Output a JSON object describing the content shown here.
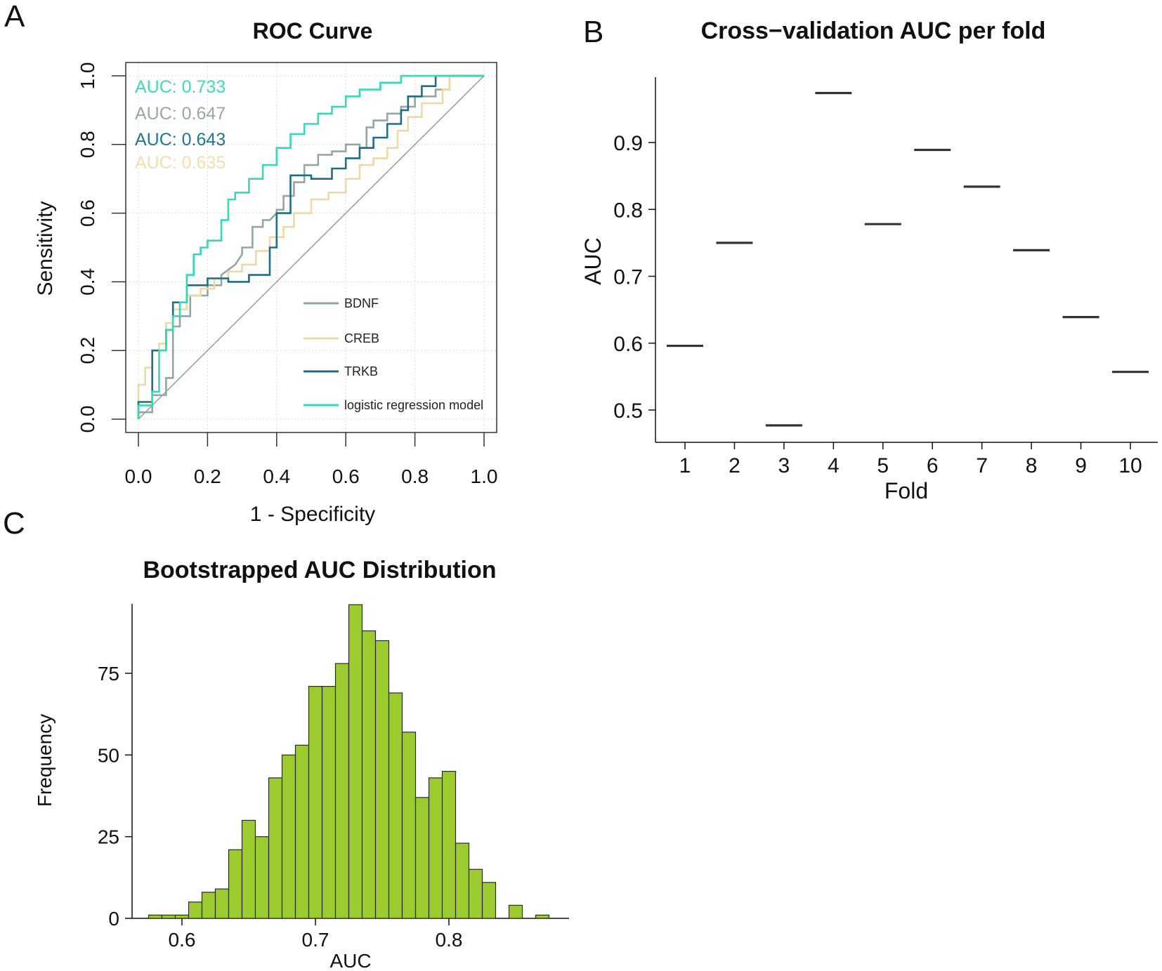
{
  "panels": {
    "a": {
      "letter": "A"
    },
    "b": {
      "letter": "B"
    },
    "c": {
      "letter": "C"
    }
  },
  "chart_data": [
    {
      "id": "roc",
      "type": "line",
      "title": "ROC Curve",
      "xlabel": "1 - Specificity",
      "ylabel": "Sensitivity",
      "xlim": [
        0,
        1
      ],
      "ylim": [
        0,
        1
      ],
      "xticks": [
        "0.0",
        "0.2",
        "0.4",
        "0.6",
        "0.8",
        "1.0"
      ],
      "yticks": [
        "0.0",
        "0.2",
        "0.4",
        "0.6",
        "0.8",
        "1.0"
      ],
      "grid": true,
      "diagonal_reference": true,
      "legend_position": "bottom-right",
      "auc_labels": [
        {
          "text": "AUC: 0.733",
          "color": "#3ddcb9"
        },
        {
          "text": "AUC: 0.647",
          "color": "#9aa7a5"
        },
        {
          "text": "AUC: 0.643",
          "color": "#1f7890"
        },
        {
          "text": "AUC: 0.635",
          "color": "#f1dfb0"
        }
      ],
      "series": [
        {
          "name": "BDNF",
          "color": "#94a6a1",
          "x": [
            0,
            0,
            0.04,
            0.04,
            0.08,
            0.08,
            0.1,
            0.1,
            0.12,
            0.12,
            0.15,
            0.15,
            0.2,
            0.2,
            0.24,
            0.24,
            0.28,
            0.3,
            0.3,
            0.33,
            0.33,
            0.36,
            0.36,
            0.38,
            0.4,
            0.4,
            0.42,
            0.42,
            0.45,
            0.45,
            0.48,
            0.48,
            0.52,
            0.52,
            0.56,
            0.56,
            0.6,
            0.6,
            0.64,
            0.64,
            0.66,
            0.66,
            0.68,
            0.68,
            0.72,
            0.72,
            0.76,
            0.76,
            0.8,
            0.8,
            0.86,
            0.86,
            0.9,
            0.9,
            1
          ],
          "y": [
            0,
            0.02,
            0.02,
            0.07,
            0.07,
            0.12,
            0.12,
            0.27,
            0.27,
            0.3,
            0.3,
            0.36,
            0.36,
            0.39,
            0.39,
            0.42,
            0.45,
            0.48,
            0.5,
            0.5,
            0.56,
            0.56,
            0.58,
            0.58,
            0.6,
            0.61,
            0.61,
            0.65,
            0.65,
            0.69,
            0.69,
            0.74,
            0.74,
            0.77,
            0.77,
            0.78,
            0.78,
            0.8,
            0.8,
            0.79,
            0.79,
            0.85,
            0.85,
            0.87,
            0.87,
            0.89,
            0.89,
            0.91,
            0.91,
            0.94,
            0.94,
            0.96,
            0.96,
            1,
            1
          ]
        },
        {
          "name": "CREB",
          "color": "#eed9a6",
          "x": [
            0,
            0,
            0.02,
            0.02,
            0.04,
            0.04,
            0.06,
            0.06,
            0.08,
            0.08,
            0.1,
            0.1,
            0.14,
            0.14,
            0.18,
            0.18,
            0.22,
            0.22,
            0.26,
            0.26,
            0.3,
            0.3,
            0.34,
            0.34,
            0.38,
            0.38,
            0.42,
            0.42,
            0.45,
            0.45,
            0.5,
            0.5,
            0.55,
            0.55,
            0.6,
            0.6,
            0.64,
            0.64,
            0.68,
            0.68,
            0.72,
            0.72,
            0.75,
            0.75,
            0.78,
            0.78,
            0.82,
            0.82,
            0.88,
            0.88,
            0.9,
            0.9,
            1
          ],
          "y": [
            0,
            0.1,
            0.1,
            0.15,
            0.15,
            0.2,
            0.2,
            0.22,
            0.22,
            0.28,
            0.28,
            0.32,
            0.32,
            0.36,
            0.36,
            0.38,
            0.38,
            0.41,
            0.41,
            0.43,
            0.43,
            0.45,
            0.45,
            0.49,
            0.49,
            0.53,
            0.53,
            0.56,
            0.56,
            0.6,
            0.6,
            0.64,
            0.64,
            0.66,
            0.66,
            0.7,
            0.7,
            0.74,
            0.74,
            0.76,
            0.76,
            0.79,
            0.79,
            0.84,
            0.84,
            0.88,
            0.88,
            0.92,
            0.92,
            0.96,
            0.96,
            1,
            1
          ]
        },
        {
          "name": "TRKB",
          "color": "#1c6f86",
          "x": [
            0,
            0,
            0.04,
            0.04,
            0.08,
            0.08,
            0.1,
            0.1,
            0.14,
            0.14,
            0.2,
            0.2,
            0.26,
            0.26,
            0.32,
            0.32,
            0.38,
            0.38,
            0.4,
            0.4,
            0.44,
            0.44,
            0.5,
            0.5,
            0.56,
            0.56,
            0.6,
            0.6,
            0.64,
            0.64,
            0.68,
            0.68,
            0.72,
            0.72,
            0.76,
            0.76,
            0.78,
            0.78,
            0.82,
            0.82,
            0.86,
            0.86,
            1
          ],
          "y": [
            0,
            0.05,
            0.05,
            0.2,
            0.2,
            0.26,
            0.26,
            0.34,
            0.34,
            0.39,
            0.39,
            0.41,
            0.41,
            0.4,
            0.4,
            0.42,
            0.42,
            0.5,
            0.5,
            0.6,
            0.6,
            0.71,
            0.71,
            0.7,
            0.7,
            0.73,
            0.73,
            0.76,
            0.76,
            0.79,
            0.79,
            0.82,
            0.82,
            0.86,
            0.86,
            0.9,
            0.9,
            0.94,
            0.94,
            0.97,
            0.97,
            1,
            1
          ]
        },
        {
          "name": "logistic regression model",
          "color": "#34dab6",
          "x": [
            0,
            0,
            0.04,
            0.04,
            0.06,
            0.06,
            0.08,
            0.08,
            0.1,
            0.1,
            0.12,
            0.12,
            0.14,
            0.14,
            0.16,
            0.16,
            0.18,
            0.18,
            0.2,
            0.2,
            0.24,
            0.24,
            0.26,
            0.26,
            0.28,
            0.28,
            0.32,
            0.32,
            0.36,
            0.36,
            0.4,
            0.4,
            0.44,
            0.44,
            0.48,
            0.48,
            0.52,
            0.52,
            0.56,
            0.56,
            0.6,
            0.6,
            0.64,
            0.64,
            0.7,
            0.7,
            0.76,
            0.76,
            0.84,
            0.84,
            1
          ],
          "y": [
            0,
            0.04,
            0.04,
            0.08,
            0.08,
            0.2,
            0.2,
            0.26,
            0.26,
            0.3,
            0.3,
            0.34,
            0.34,
            0.42,
            0.42,
            0.48,
            0.48,
            0.5,
            0.5,
            0.52,
            0.52,
            0.58,
            0.58,
            0.64,
            0.64,
            0.66,
            0.66,
            0.7,
            0.7,
            0.74,
            0.74,
            0.79,
            0.79,
            0.83,
            0.83,
            0.86,
            0.86,
            0.89,
            0.89,
            0.91,
            0.91,
            0.94,
            0.94,
            0.96,
            0.96,
            0.98,
            0.98,
            1,
            1,
            1,
            1
          ]
        }
      ]
    },
    {
      "id": "cv",
      "type": "scatter",
      "title": "Cross−validation AUC per fold",
      "xlabel": "Fold",
      "ylabel": "AUC",
      "categories": [
        "1",
        "2",
        "3",
        "4",
        "5",
        "6",
        "7",
        "8",
        "9",
        "10"
      ],
      "values": [
        0.596,
        0.75,
        0.477,
        0.974,
        0.778,
        0.889,
        0.834,
        0.739,
        0.639,
        0.557
      ],
      "yticks": [
        "0.5",
        "0.6",
        "0.7",
        "0.8",
        "0.9"
      ],
      "ylim": [
        0.455,
        1.0
      ],
      "marker": "horizontal-dash",
      "grid": false
    },
    {
      "id": "boot",
      "type": "bar",
      "title": "Bootstrapped AUC Distribution",
      "xlabel": "AUC",
      "ylabel": "Frequency",
      "bin_width": 0.01,
      "bin_starts": [
        0.575,
        0.585,
        0.595,
        0.605,
        0.615,
        0.625,
        0.635,
        0.645,
        0.655,
        0.665,
        0.675,
        0.685,
        0.695,
        0.705,
        0.715,
        0.725,
        0.735,
        0.745,
        0.755,
        0.765,
        0.775,
        0.785,
        0.795,
        0.805,
        0.815,
        0.825,
        0.835,
        0.845,
        0.855,
        0.865,
        0.875
      ],
      "values": [
        1,
        1,
        1,
        5,
        8,
        9,
        21,
        30,
        25,
        43,
        50,
        53,
        71,
        71,
        78,
        96,
        88,
        85,
        69,
        57,
        37,
        43,
        45,
        23,
        15,
        11,
        0,
        4,
        0,
        1,
        0
      ],
      "xticks": [
        "0.6",
        "0.7",
        "0.8"
      ],
      "yticks": [
        "0",
        "25",
        "50",
        "75"
      ],
      "xlim": [
        0.57,
        0.89
      ],
      "ylim": [
        0,
        96
      ],
      "bar_color": "#9bcb2e",
      "bar_edge_color": "#2a2a2a"
    }
  ]
}
